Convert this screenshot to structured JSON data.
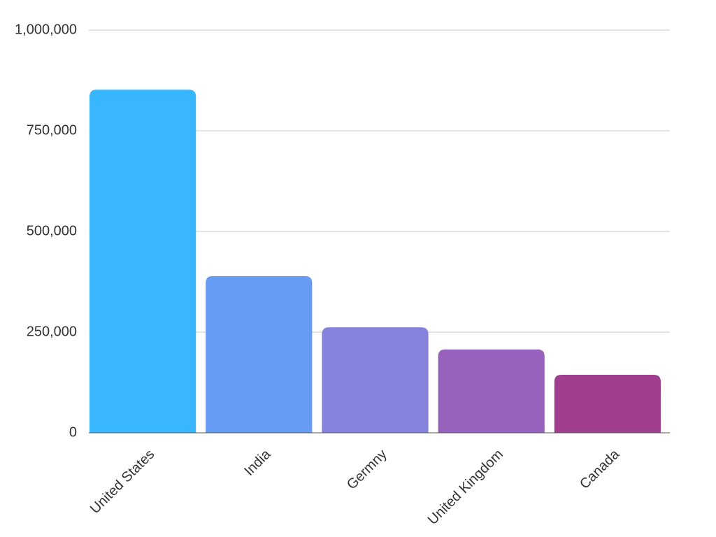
{
  "chart_data": {
    "type": "bar",
    "categories": [
      "United States",
      "India",
      "Germny",
      "United Kingdom",
      "Canada"
    ],
    "values": [
      852000,
      389000,
      262000,
      207000,
      144000
    ],
    "colors": [
      "#38b6ff",
      "#659bf2",
      "#8482dd",
      "#9762bd",
      "#a03e90"
    ],
    "ylim": [
      0,
      1000000
    ],
    "yticks": [
      0,
      {
        "value": 250000,
        "label": "250,000"
      },
      {
        "value": 500000,
        "label": "500,000"
      },
      {
        "value": 750000,
        "label": "750,000"
      },
      {
        "value": 1000000,
        "label": "1,000,000"
      }
    ],
    "grid": true
  }
}
